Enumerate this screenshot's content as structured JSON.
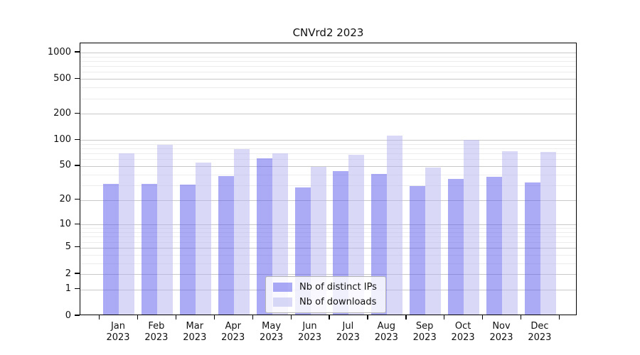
{
  "page": {
    "background": "#ffffff"
  },
  "chart_data": {
    "type": "bar",
    "title": "CNVrd2 2023",
    "categories": [
      "Jan 2023",
      "Feb 2023",
      "Mar 2023",
      "Apr 2023",
      "May 2023",
      "Jun 2023",
      "Jul 2023",
      "Aug 2023",
      "Sep 2023",
      "Oct 2023",
      "Nov 2023",
      "Dec 2023"
    ],
    "series": [
      {
        "name": "Nb of distinct IPs",
        "values": [
          30,
          30,
          29,
          37,
          59,
          27,
          42,
          39,
          28,
          34,
          36,
          31
        ]
      },
      {
        "name": "Nb of downloads",
        "values": [
          67,
          85,
          53,
          76,
          68,
          47,
          65,
          109,
          46,
          97,
          72,
          70
        ]
      }
    ],
    "xlabel": "",
    "ylabel": "",
    "yscale": "log1p",
    "ylim": [
      0,
      1000
    ],
    "y_major_ticks": [
      0,
      1,
      2,
      5,
      10,
      20,
      50,
      100,
      200,
      500,
      1000
    ],
    "y_minor_gridlines": [
      3,
      4,
      6,
      7,
      8,
      9,
      30,
      40,
      60,
      70,
      80,
      90,
      300,
      400,
      600,
      700,
      800,
      900
    ],
    "grid": "horizontal",
    "legend_position": "lower center",
    "series_colors": [
      "rgba(85,85,235,0.5)",
      "rgba(180,180,240,0.5)"
    ],
    "gridline_major_color": "#c9c9c9",
    "gridline_minor_color": "#ededed",
    "axis_color": "#000000"
  }
}
